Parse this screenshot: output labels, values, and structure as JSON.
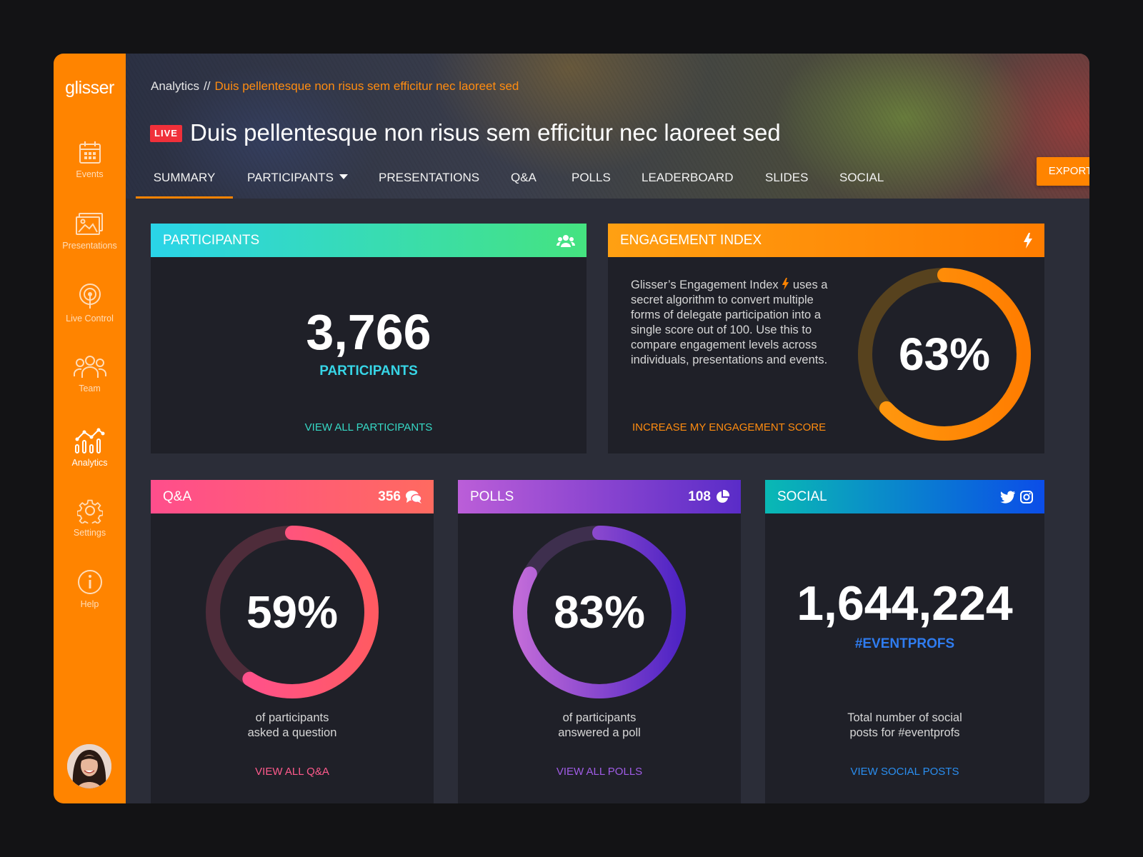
{
  "app": {
    "logo": "glisser"
  },
  "sidebar": {
    "items": [
      {
        "label": "Events",
        "icon": "calendar-icon"
      },
      {
        "label": "Presentations",
        "icon": "image-gallery-icon"
      },
      {
        "label": "Live Control",
        "icon": "live-broadcast-icon"
      },
      {
        "label": "Team",
        "icon": "team-icon"
      },
      {
        "label": "Analytics",
        "icon": "analytics-icon",
        "active": true
      },
      {
        "label": "Settings",
        "icon": "gear-icon"
      },
      {
        "label": "Help",
        "icon": "info-icon"
      }
    ]
  },
  "header": {
    "breadcrumb": {
      "root": "Analytics",
      "separator": "//",
      "current": "Duis pellentesque non risus sem efficitur nec laoreet sed"
    },
    "live_badge": "LIVE",
    "title": "Duis pellentesque non risus sem efficitur nec laoreet sed",
    "tabs": [
      {
        "label": "SUMMARY",
        "active": true
      },
      {
        "label": "PARTICIPANTS",
        "dropdown": true
      },
      {
        "label": "PRESENTATIONS"
      },
      {
        "label": "Q&A"
      },
      {
        "label": "POLLS"
      },
      {
        "label": "LEADERBOARD"
      },
      {
        "label": "SLIDES"
      },
      {
        "label": "SOCIAL"
      }
    ],
    "export_label": "EXPORT"
  },
  "participants": {
    "heading": "PARTICIPANTS",
    "count": "3,766",
    "caption": "PARTICIPANTS",
    "link": "VIEW ALL PARTICIPANTS",
    "icon": "users-icon"
  },
  "engagement": {
    "heading": "ENGAGEMENT INDEX",
    "icon": "lightning-icon",
    "desc_before": "Glisser’s Engagement Index",
    "desc_after": "uses a secret algorithm to convert multiple forms of delegate participation into a single score out of 100. Use this to compare engagement levels across individuals, presentations and events.",
    "value": "63%",
    "percent": 63,
    "link": "INCREASE MY ENGAGEMENT SCORE"
  },
  "qa": {
    "heading": "Q&A",
    "count": "356",
    "icon": "chat-bubbles-icon",
    "value": "59%",
    "percent": 59,
    "caption_line1": "of participants",
    "caption_line2": "asked a question",
    "link": "VIEW ALL Q&A"
  },
  "polls": {
    "heading": "POLLS",
    "count": "108",
    "icon": "pie-chart-icon",
    "value": "83%",
    "percent": 83,
    "caption_line1": "of participants",
    "caption_line2": "answered a poll",
    "link": "VIEW ALL POLLS"
  },
  "social": {
    "heading": "SOCIAL",
    "icons": [
      "twitter-icon",
      "instagram-icon"
    ],
    "count": "1,644,224",
    "hashtag": "#EVENTPROFS",
    "caption_line1": "Total number of social",
    "caption_line2": "posts for #eventprofs",
    "link": "VIEW SOCIAL POSTS"
  },
  "colors": {
    "accent": "#ff8400",
    "participants_grad": [
      "#2ad4e8",
      "#45e380"
    ],
    "engagement_grad": [
      "#ffa012",
      "#ff7d00"
    ],
    "qa_grad": [
      "#ff4e8c",
      "#ff6a60"
    ],
    "polls_grad": [
      "#bb5ed8",
      "#5a2cc8"
    ],
    "social_grad": [
      "#09b9b4",
      "#0b4de8"
    ]
  }
}
